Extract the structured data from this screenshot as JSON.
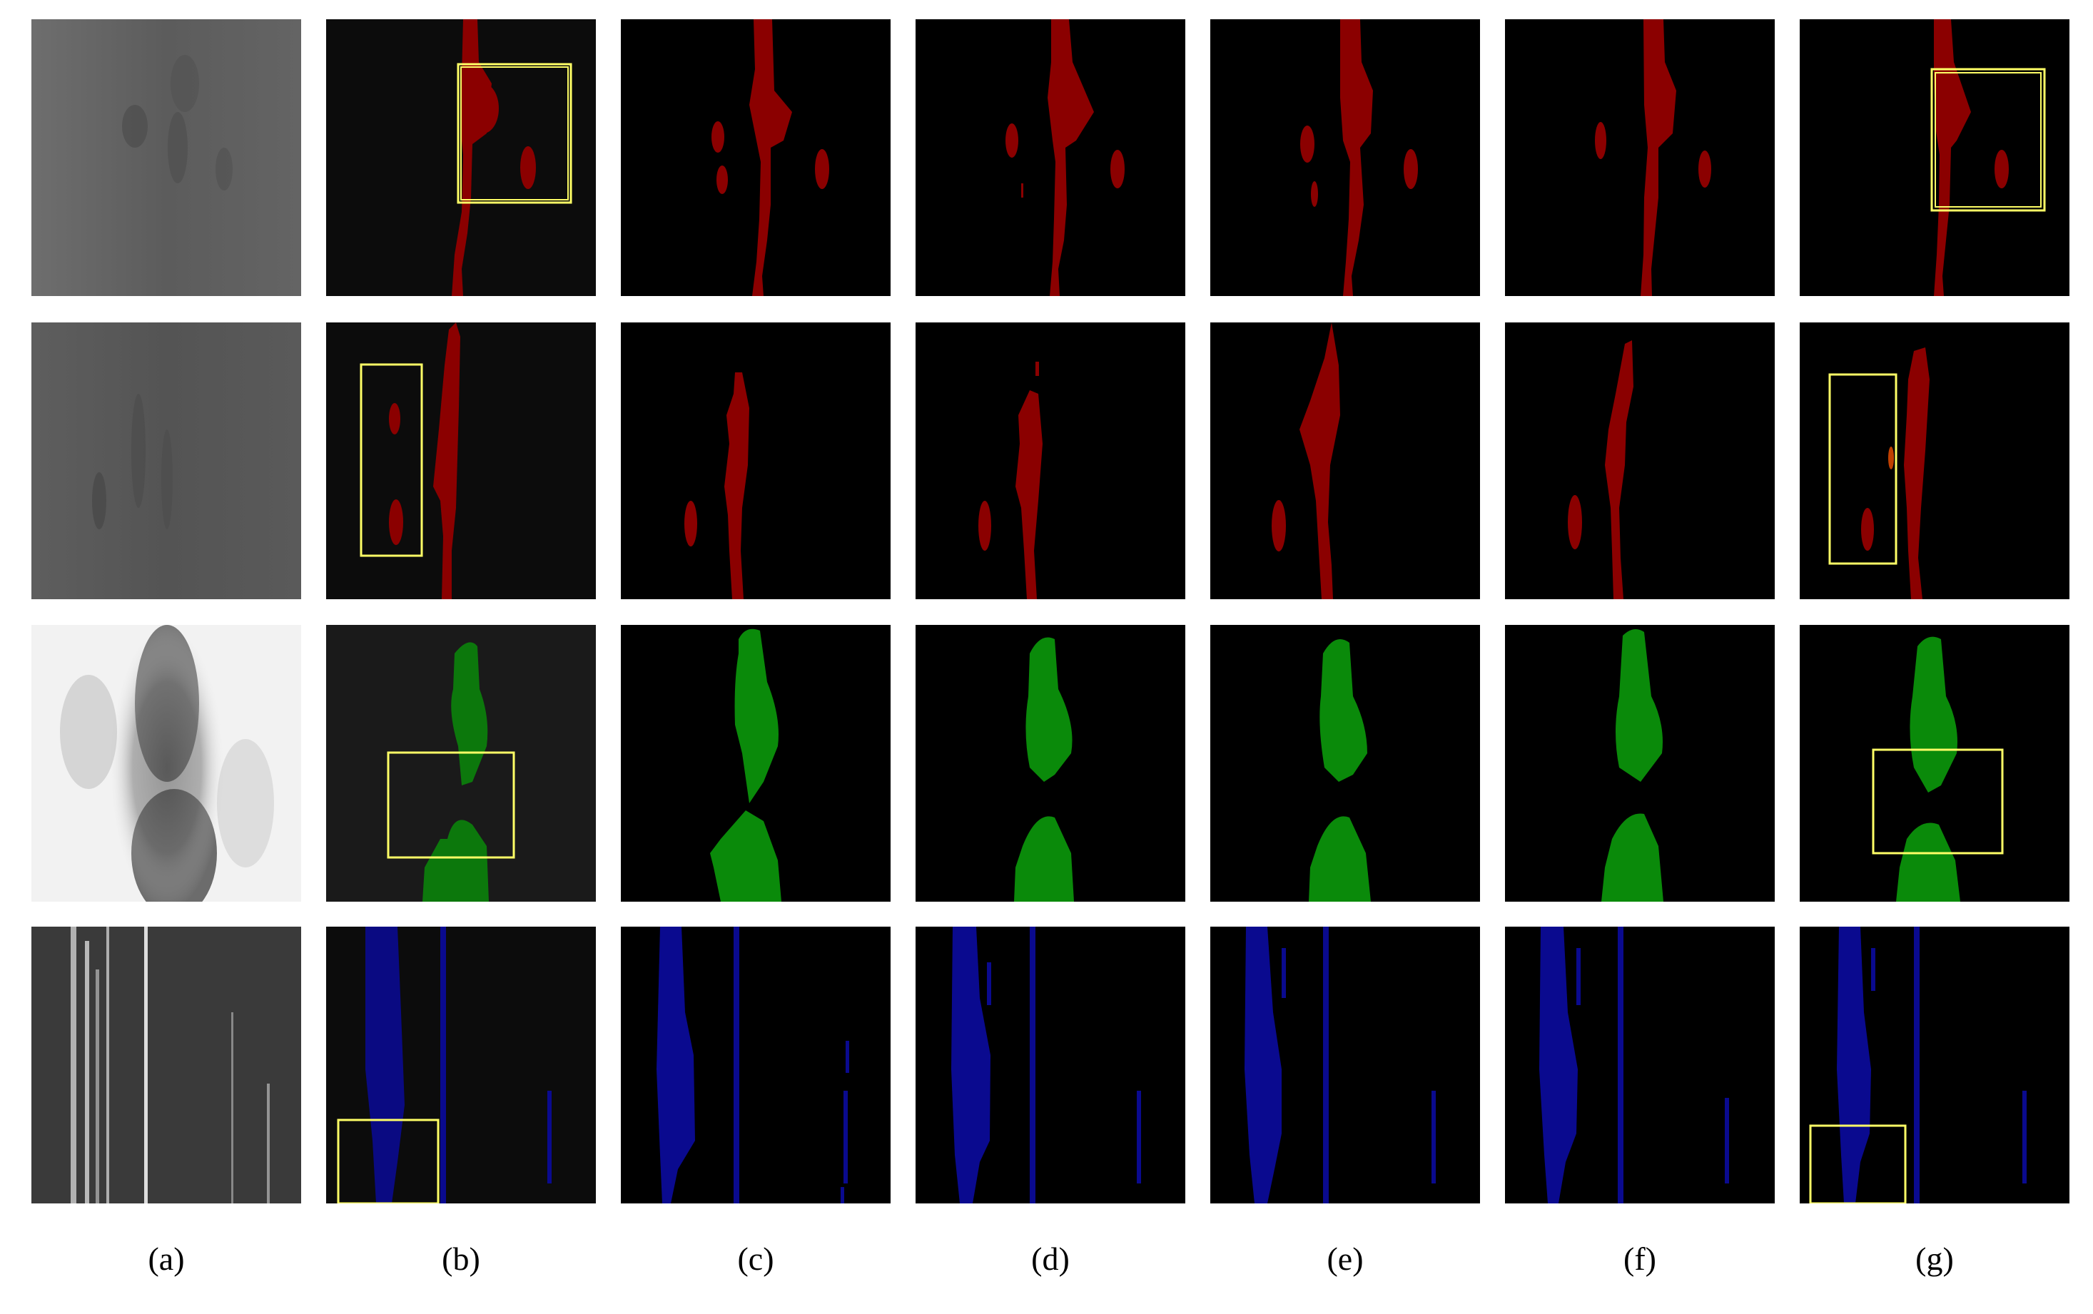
{
  "figure": {
    "column_labels": [
      "(a)",
      "(b)",
      "(c)",
      "(d)",
      "(e)",
      "(f)",
      "(g)"
    ],
    "colors": {
      "class_red": "#8b0000",
      "class_green": "#0a8a0a",
      "class_blue": "#0a0a8f",
      "highlight_box": "#ffff66",
      "background": "#000000"
    },
    "rows": [
      {
        "defect_color": "class_red",
        "boxed_columns": [
          "b",
          "g"
        ]
      },
      {
        "defect_color": "class_red",
        "boxed_columns": [
          "b",
          "g"
        ]
      },
      {
        "defect_color": "class_green",
        "boxed_columns": [
          "b",
          "g"
        ]
      },
      {
        "defect_color": "class_blue",
        "boxed_columns": [
          "b",
          "g"
        ]
      }
    ]
  }
}
